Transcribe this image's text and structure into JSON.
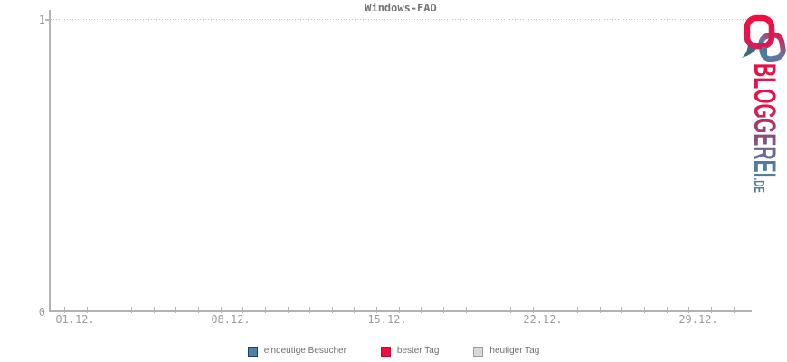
{
  "chart": {
    "title": "Windows-FAQ",
    "y_axis": {
      "max_label": "1",
      "min_label": "0"
    },
    "x_axis": {
      "labels": [
        "01.12.",
        "08.12.",
        "15.12.",
        "22.12.",
        "29.12."
      ]
    }
  },
  "legend": {
    "items": [
      {
        "label": "eindeutige Besucher",
        "swatch_fill": "#4d82a8",
        "swatch_border": "#1d3f63"
      },
      {
        "label": "bester Tag",
        "swatch_fill": "#ee0d3c",
        "swatch_border": "#bf0a33"
      },
      {
        "label": "heutiger Tag",
        "swatch_fill": "#d9d9d9",
        "swatch_border": "#9b9b9b"
      }
    ]
  },
  "logo": {
    "text": "BLOGGEREI",
    "tld": ".DE",
    "gradient_from": "#ea0f46",
    "gradient_mid": "#8e4a7b",
    "gradient_to": "#527d9c",
    "icon_tail": "#3d6a7e"
  },
  "colors": {
    "axis": "#b3b3b3",
    "tick_label": "#9c9c9c",
    "title": "#757575",
    "legend_text": "#6f6f6f",
    "grid_dotted": "#c3c3c3"
  },
  "chart_data": {
    "type": "bar",
    "title": "Windows-FAQ",
    "x_tick_count": 31,
    "x_tick_labels": [
      "01.12.",
      "08.12.",
      "15.12.",
      "22.12.",
      "29.12."
    ],
    "y_tick_labels": [
      "0",
      "1"
    ],
    "ylim": [
      0,
      1
    ],
    "grid": "dotted horizontal line at y=1 only",
    "legend_position": "bottom-center",
    "series": [
      {
        "name": "eindeutige Besucher",
        "values": [
          0,
          0,
          0,
          0,
          0,
          0,
          0,
          0,
          0,
          0,
          0,
          0,
          0,
          0,
          0,
          0,
          0,
          0,
          0,
          0,
          0,
          0,
          0,
          0,
          0,
          0,
          0,
          0,
          0,
          0,
          0
        ]
      },
      {
        "name": "bester Tag",
        "values": [
          0,
          0,
          0,
          0,
          0,
          0,
          0,
          0,
          0,
          0,
          0,
          0,
          0,
          0,
          0,
          0,
          0,
          0,
          0,
          0,
          0,
          0,
          0,
          0,
          0,
          0,
          0,
          0,
          0,
          0,
          0
        ]
      },
      {
        "name": "heutiger Tag",
        "values": [
          0,
          0,
          0,
          0,
          0,
          0,
          0,
          0,
          0,
          0,
          0,
          0,
          0,
          0,
          0,
          0,
          0,
          0,
          0,
          0,
          0,
          0,
          0,
          0,
          0,
          0,
          0,
          0,
          0,
          0,
          0
        ]
      }
    ],
    "note": "plot area is empty: all values are zero / no bars rendered"
  }
}
